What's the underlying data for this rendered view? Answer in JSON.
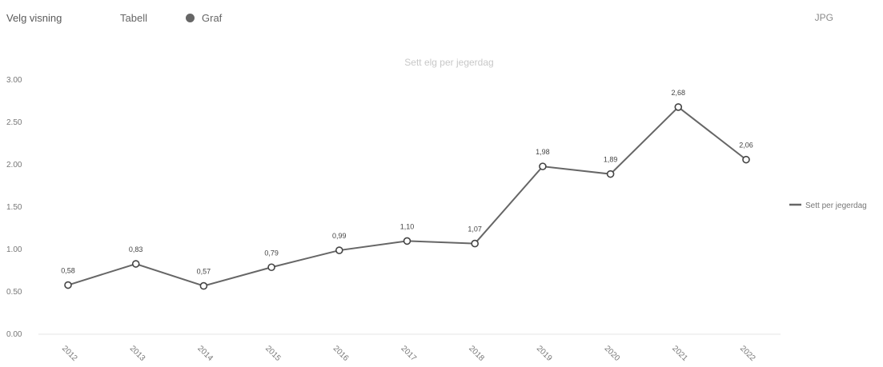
{
  "controls": {
    "view_label": "Velg visning",
    "table_option": "Tabell",
    "graph_option": "Graf",
    "export_label": "JPG"
  },
  "colors": {
    "series": "#666666",
    "grid": "#e6e6e6",
    "axis_text": "#777777",
    "title": "#c8c8c8"
  },
  "chart_data": {
    "type": "line",
    "title": "Sett elg per jegerdag",
    "xlabel": "",
    "ylabel": "",
    "categories": [
      "2012",
      "2013",
      "2014",
      "2015",
      "2016",
      "2017",
      "2018",
      "2019",
      "2020",
      "2021",
      "2022"
    ],
    "series": [
      {
        "name": "Sett per jegerdag",
        "values": [
          0.58,
          0.83,
          0.57,
          0.79,
          0.99,
          1.1,
          1.07,
          1.98,
          1.89,
          2.68,
          2.06
        ],
        "labels": [
          "0,58",
          "0,83",
          "0,57",
          "0,79",
          "0,99",
          "1,10",
          "1,07",
          "1,98",
          "1,89",
          "2,68",
          "2,06"
        ]
      }
    ],
    "ylim": [
      0,
      3
    ],
    "yticks": [
      0,
      0.5,
      1,
      1.5,
      2,
      2.5,
      3
    ],
    "ytick_labels": [
      "0.00",
      "0.50",
      "1.00",
      "1.50",
      "2.00",
      "2.50",
      "3.00"
    ],
    "grid": false,
    "legend": "right",
    "markers": "hollow-circle"
  }
}
